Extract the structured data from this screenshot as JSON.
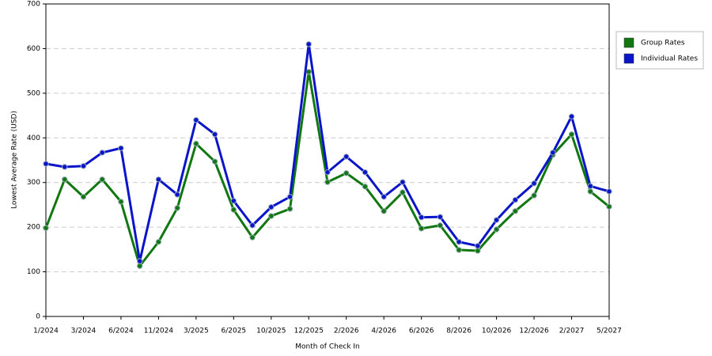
{
  "chart_data": {
    "type": "line",
    "x_label": "Month of Check In",
    "y_label": "Lowest Average Rate (USD)",
    "categories": [
      "1/2024",
      null,
      "3/2024",
      null,
      "6/2024",
      null,
      "11/2024",
      null,
      "3/2025",
      null,
      "6/2025",
      null,
      "10/2025",
      null,
      "12/2025",
      null,
      "2/2026",
      null,
      "4/2026",
      null,
      "6/2026",
      null,
      "8/2026",
      null,
      "10/2026",
      null,
      "12/2026",
      null,
      "2/2027",
      null,
      "5/2027"
    ],
    "series": [
      {
        "name": "Group Rates",
        "color": "#117711",
        "values": [
          198,
          307,
          268,
          307,
          257,
          113,
          167,
          243,
          387,
          347,
          239,
          177,
          225,
          241,
          548,
          301,
          321,
          291,
          236,
          278,
          197,
          204,
          149,
          147,
          195,
          236,
          271,
          362,
          408,
          280,
          246
        ]
      },
      {
        "name": "Individual Rates",
        "color": "#0a14c8",
        "values": [
          342,
          335,
          337,
          367,
          377,
          124,
          307,
          273,
          440,
          408,
          259,
          204,
          245,
          268,
          610,
          323,
          358,
          323,
          268,
          301,
          222,
          223,
          167,
          158,
          216,
          261,
          298,
          367,
          448,
          292,
          280
        ]
      }
    ],
    "ylim": [
      0,
      700
    ],
    "yticks": [
      0,
      100,
      200,
      300,
      400,
      500,
      600,
      700
    ],
    "grid": true,
    "legend": "right"
  }
}
